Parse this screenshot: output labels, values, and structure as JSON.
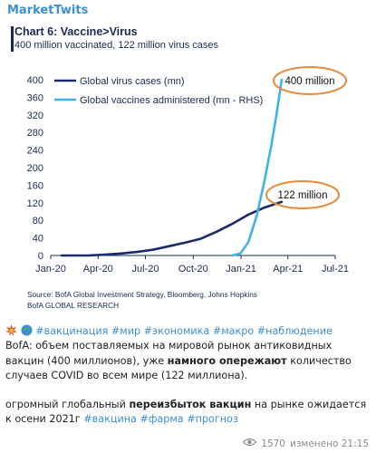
{
  "channel": {
    "name": "MarketTwits"
  },
  "chart_data": {
    "type": "line",
    "title": "Chart 6: Vaccine>Virus",
    "subtitle": "400 million vaccinated, 122 million virus cases",
    "x_ticks": [
      "Jan-20",
      "Apr-20",
      "Jul-20",
      "Oct-20",
      "Jan-21",
      "Apr-21",
      "Jul-21"
    ],
    "y_ticks": [
      "0",
      "40",
      "80",
      "120",
      "160",
      "200",
      "240",
      "280",
      "320",
      "360",
      "400"
    ],
    "ylim": [
      0,
      400
    ],
    "series": [
      {
        "name": "Global virus cases (mn)",
        "color": "#1a2a6c",
        "x": [
          "2020-01-22",
          "2020-02-15",
          "2020-03-15",
          "2020-04-15",
          "2020-05-15",
          "2020-06-15",
          "2020-07-15",
          "2020-08-15",
          "2020-09-15",
          "2020-10-15",
          "2020-11-15",
          "2020-12-15",
          "2021-01-15",
          "2021-02-15",
          "2021-03-20"
        ],
        "values": [
          0,
          0.1,
          0.2,
          2,
          4.5,
          8,
          13,
          21,
          29,
          38,
          54,
          72,
          93,
          109,
          122
        ]
      },
      {
        "name": "Global vaccines administered (mn - RHS)",
        "color": "#3eb3e8",
        "x": [
          "2020-12-15",
          "2020-12-31",
          "2021-01-15",
          "2021-01-31",
          "2021-02-15",
          "2021-02-28",
          "2021-03-10",
          "2021-03-20"
        ],
        "values": [
          0,
          5,
          30,
          90,
          170,
          250,
          320,
          400
        ]
      }
    ],
    "annotations": [
      "400 million",
      "122 million"
    ],
    "source": "Source: BofA Global Investment Strategy, Bloomberg, Johns Hopkins",
    "credit": "BofA GLOBAL RESEARCH",
    "annotation_color": "#e88a3a"
  },
  "post": {
    "hashtags_line": "#вакцинация #мир #экономика #макро #наблюдение",
    "p1_a": "BofA: объем поставляемых на мировой рынок антиковидных вакцин  (400 миллионов), уже ",
    "p1_bold": "намного опережают",
    "p1_b": " количество случаев COVID во всем мире (122 миллиона).",
    "p2_a": "огромный глобальный ",
    "p2_bold": "переизбыток вакцин",
    "p2_b": " на рынке ожидается к осени 2021г ",
    "p2_tags": "#вакцина #фарма #прогноз"
  },
  "meta": {
    "views": "1570",
    "edited": "изменено 21:15",
    "eye_icon": "eye-icon"
  }
}
